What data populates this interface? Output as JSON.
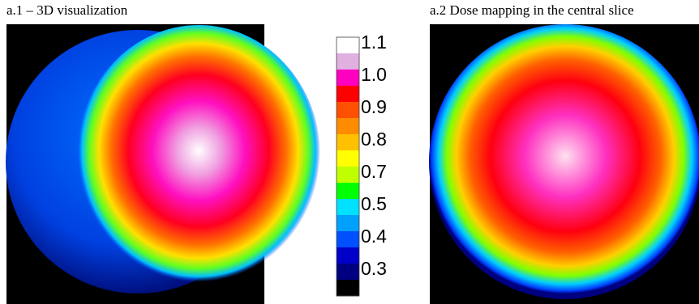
{
  "panels": [
    {
      "title": "a.1 – 3D visualization"
    },
    {
      "title": "a.2 Dose mapping in the central slice"
    }
  ],
  "colorbar": {
    "labels": [
      "1.1",
      "1.0",
      "0.9",
      "0.8",
      "0.7",
      "0.5",
      "0.4",
      "0.3"
    ],
    "colors": [
      "#ffffff",
      "#e0b0e0",
      "#ff00c0",
      "#ff0000",
      "#ff5000",
      "#ff8c00",
      "#ffc000",
      "#ffff00",
      "#c0ff00",
      "#00ff00",
      "#00e0ff",
      "#00a0ff",
      "#0050ff",
      "#0000c8",
      "#000080",
      "#000000"
    ]
  }
}
